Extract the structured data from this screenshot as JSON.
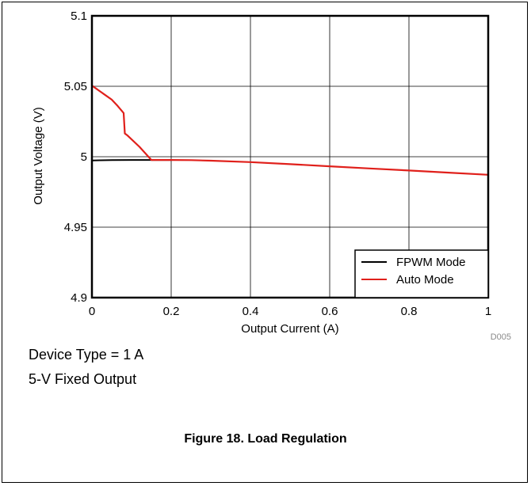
{
  "chart_data": {
    "type": "line",
    "xlabel": "Output Current (A)",
    "ylabel": "Output Voltage (V)",
    "xlim": [
      0,
      1
    ],
    "ylim": [
      4.9,
      5.1
    ],
    "x_ticks": [
      0,
      0.2,
      0.4,
      0.6,
      0.8,
      1
    ],
    "x_tick_labels": [
      "0",
      "0.2",
      "0.4",
      "0.6",
      "0.8",
      "1"
    ],
    "y_ticks": [
      4.9,
      4.95,
      5,
      5.05,
      5.1
    ],
    "y_tick_labels": [
      "4.9",
      "4.95",
      "5",
      "5.05",
      "5.1"
    ],
    "grid": true,
    "legend_position": "bottom-right",
    "series": [
      {
        "name": "FPWM Mode",
        "color": "#000000",
        "x": [
          0.0,
          0.02,
          0.05,
          0.1,
          0.15,
          0.2
        ],
        "y": [
          4.9973,
          4.9975,
          4.9976,
          4.9977,
          4.9977,
          4.9977
        ]
      },
      {
        "name": "Auto Mode",
        "color": "#e0201b",
        "x": [
          0.0,
          0.01,
          0.03,
          0.05,
          0.065,
          0.08,
          0.083,
          0.09,
          0.12,
          0.15,
          0.2,
          0.25,
          0.3,
          0.4,
          0.5,
          0.6,
          0.7,
          0.8,
          0.9,
          1.0
        ],
        "y": [
          5.0505,
          5.0485,
          5.0445,
          5.0405,
          5.036,
          5.031,
          5.0165,
          5.015,
          5.007,
          4.9977,
          4.9977,
          4.9976,
          4.9972,
          4.9962,
          4.9947,
          4.9932,
          4.9917,
          4.9902,
          4.9887,
          4.9872
        ]
      }
    ]
  },
  "figure_code": "D005",
  "notes": [
    "Device Type = 1 A",
    "5-V Fixed Output"
  ],
  "caption": "Figure 18. Load Regulation"
}
